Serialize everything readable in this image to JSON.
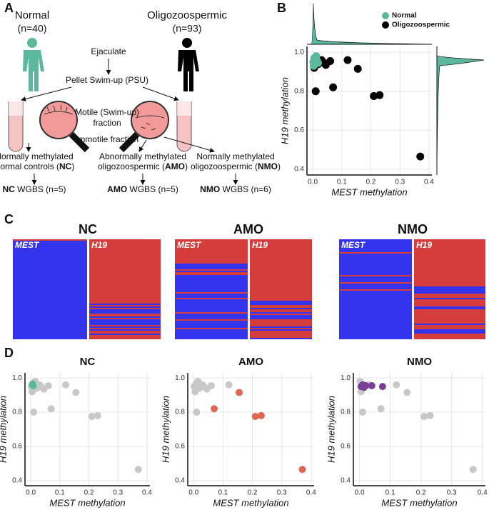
{
  "panel_labels": [
    "A",
    "B",
    "C",
    "D"
  ],
  "diagram": {
    "normal": {
      "title": "Normal",
      "n": "(n=40)"
    },
    "oligo": {
      "title": "Oligozoospermic",
      "n": "(n=93)"
    },
    "ejaculate": "Ejaculate",
    "psu": "Pellet Swim-up (PSU)",
    "motile": [
      "Motile (Swim-up)",
      "fraction"
    ],
    "immotile": "Immotile fraction",
    "groups": [
      {
        "line1": "Normally methylated",
        "line2": [
          "Normal controls (",
          "NC",
          ")"
        ],
        "wgbs": [
          "NC",
          " WGBS (n=5)"
        ]
      },
      {
        "line1": "Abnormally methylated",
        "line2": [
          "oligozoospermic (",
          "AMO",
          ")"
        ],
        "wgbs": [
          "AMO",
          " WGBS (n=5)"
        ]
      },
      {
        "line1": "Normally methylated",
        "line2": [
          "oligozoospermic (",
          "NMO",
          ")"
        ],
        "wgbs": [
          "NMO",
          " WGBS (n=6)"
        ]
      }
    ]
  },
  "heatmaps": [
    {
      "title": "NC",
      "left": "MEST",
      "right": "H19"
    },
    {
      "title": "AMO",
      "left": "MEST",
      "right": "H19"
    },
    {
      "title": "NMO",
      "left": "MEST",
      "right": "H19"
    }
  ],
  "chart_data": [
    {
      "type": "scatter",
      "xlabel": "MEST methylation",
      "ylabel": "H19 methylation",
      "xlim": [
        -0.02,
        0.41
      ],
      "ylim": [
        0.37,
        1.03
      ],
      "xticks": [
        {
          "value": 0,
          "label": "0.0"
        },
        0.1,
        0.2,
        0.3,
        0.4
      ],
      "yticks": [
        0.4,
        0.6,
        0.8,
        {
          "value": 1,
          "label": "1.0"
        }
      ],
      "grid": true,
      "legend": "upper right",
      "series": [
        {
          "name": "Normal",
          "color": "#5cb89b",
          "x": [
            0.002,
            0.005,
            0.008,
            0.01,
            0.012,
            0.015,
            0.003,
            0.018,
            0.006,
            0.01
          ],
          "values": [
            0.95,
            0.97,
            0.94,
            0.96,
            0.98,
            0.955,
            0.93,
            0.945,
            0.965,
            0.95
          ]
        },
        {
          "name": "Oligozoospermic",
          "color": "#000000",
          "x": [
            0.01,
            0.07,
            0.12,
            0.155,
            0.21,
            0.23,
            0.37,
            0.06,
            0.035,
            0.045,
            0.02,
            0.005,
            0.01,
            0.03
          ],
          "values": [
            0.8,
            0.82,
            0.96,
            0.915,
            0.775,
            0.78,
            0.465,
            0.955,
            0.95,
            0.935,
            0.94,
            0.92,
            0.97,
            0.96
          ]
        }
      ]
    },
    {
      "type": "scatter",
      "title": "NC",
      "xlabel": "MEST methylation",
      "ylabel": "H19 methylation",
      "xlim": [
        -0.02,
        0.41
      ],
      "ylim": [
        0.37,
        1.03
      ],
      "xticks": [
        {
          "value": 0,
          "label": "0.0"
        },
        0.1,
        0.2,
        0.3,
        0.4
      ],
      "yticks": [
        0.4,
        0.6,
        0.8,
        {
          "value": 1,
          "label": "1.0"
        }
      ],
      "grid": true,
      "series": [
        {
          "color": "#c8c8c8",
          "x": [
            0.01,
            0.07,
            0.12,
            0.155,
            0.21,
            0.23,
            0.37,
            0.06,
            0.035,
            0.045,
            0.02,
            0.005,
            0.01,
            0.03,
            0.002,
            0.015
          ],
          "values": [
            0.8,
            0.82,
            0.96,
            0.915,
            0.775,
            0.78,
            0.465,
            0.955,
            0.95,
            0.935,
            0.94,
            0.92,
            0.97,
            0.96,
            0.95,
            0.98
          ]
        },
        {
          "color": "#5cb89b",
          "x": [
            0.005,
            0.008,
            0.006
          ],
          "values": [
            0.96,
            0.955,
            0.965
          ]
        }
      ]
    },
    {
      "type": "scatter",
      "title": "AMO",
      "xlabel": "MEST methylation",
      "ylabel": "H19 methylation",
      "xlim": [
        -0.02,
        0.41
      ],
      "ylim": [
        0.37,
        1.03
      ],
      "xticks": [
        {
          "value": 0,
          "label": "0.0"
        },
        0.1,
        0.2,
        0.3,
        0.4
      ],
      "yticks": [
        0.4,
        0.6,
        0.8,
        {
          "value": 1,
          "label": "1.0"
        }
      ],
      "grid": true,
      "series": [
        {
          "color": "#c8c8c8",
          "x": [
            0.01,
            0.12,
            0.06,
            0.035,
            0.045,
            0.02,
            0.005,
            0.01,
            0.03,
            0.002,
            0.015
          ],
          "values": [
            0.8,
            0.96,
            0.955,
            0.95,
            0.935,
            0.94,
            0.92,
            0.97,
            0.96,
            0.95,
            0.98
          ]
        },
        {
          "color": "#e06655",
          "x": [
            0.07,
            0.155,
            0.21,
            0.23,
            0.37
          ],
          "values": [
            0.82,
            0.915,
            0.775,
            0.78,
            0.465
          ]
        }
      ]
    },
    {
      "type": "scatter",
      "title": "NMO",
      "xlabel": "MEST methylation",
      "ylabel": "H19 methylation",
      "xlim": [
        -0.02,
        0.41
      ],
      "ylim": [
        0.37,
        1.03
      ],
      "xticks": [
        {
          "value": 0,
          "label": "0.0"
        },
        0.1,
        0.2,
        0.3,
        0.4
      ],
      "yticks": [
        0.4,
        0.6,
        0.8,
        {
          "value": 1,
          "label": "1.0"
        }
      ],
      "grid": true,
      "series": [
        {
          "color": "#c8c8c8",
          "x": [
            0.01,
            0.07,
            0.12,
            0.155,
            0.21,
            0.23,
            0.37,
            0.005,
            0.03,
            0.002
          ],
          "values": [
            0.8,
            0.82,
            0.96,
            0.915,
            0.775,
            0.78,
            0.465,
            0.92,
            0.96,
            0.98
          ]
        },
        {
          "color": "#7b3f98",
          "x": [
            0.005,
            0.02,
            0.04,
            0.075,
            0.01,
            0.015
          ],
          "values": [
            0.95,
            0.955,
            0.955,
            0.95,
            0.96,
            0.945
          ]
        }
      ]
    }
  ]
}
